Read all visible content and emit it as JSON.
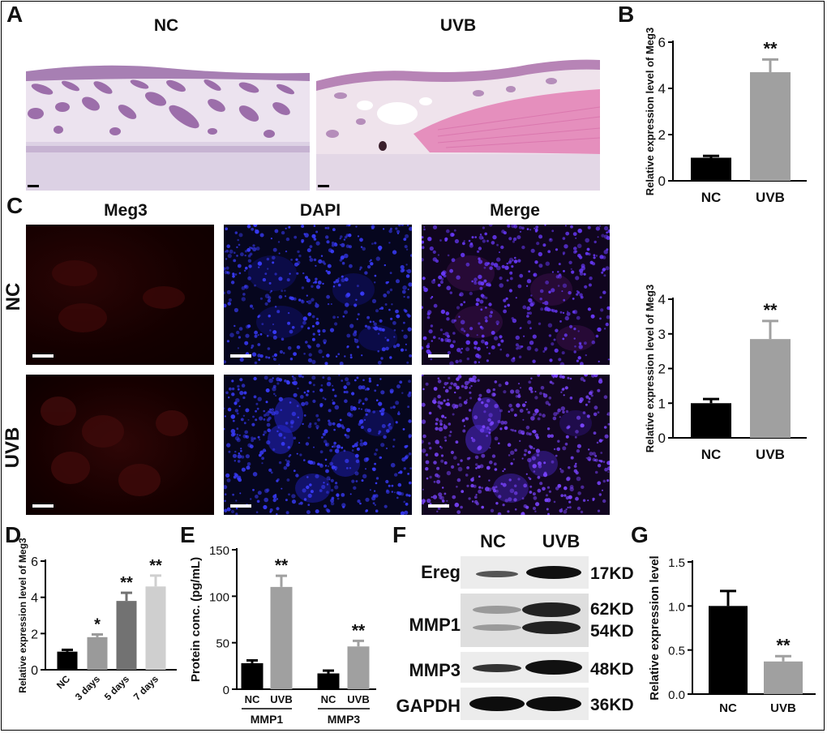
{
  "panels": {
    "A": {
      "label": "A",
      "titles": [
        "NC",
        "UVB"
      ]
    },
    "B": {
      "label": "B"
    },
    "C": {
      "label": "C",
      "columns": [
        "Meg3",
        "DAPI",
        "Merge"
      ],
      "rows": [
        "NC",
        "UVB"
      ]
    },
    "D": {
      "label": "D"
    },
    "E": {
      "label": "E"
    },
    "F": {
      "label": "F",
      "columns": [
        "NC",
        "UVB"
      ],
      "rows": [
        "Ereg",
        "MMP1",
        "MMP3",
        "GAPDH"
      ],
      "sizes": [
        "17KD",
        "62KD",
        "54KD",
        "48KD",
        "36KD"
      ]
    },
    "G": {
      "label": "G"
    }
  },
  "chart_data": [
    {
      "id": "B",
      "type": "bar",
      "categories": [
        "NC",
        "UVB"
      ],
      "values": [
        1.0,
        4.7
      ],
      "errors": [
        0.08,
        0.55
      ],
      "colors": [
        "#000000",
        "#a0a0a0"
      ],
      "ylabel": "Relative expression level of Meg3",
      "ylim": [
        0,
        6
      ],
      "yticks": [
        "0",
        "2",
        "4",
        "6"
      ],
      "annotations": [
        "",
        "**"
      ]
    },
    {
      "id": "C-right",
      "type": "bar",
      "categories": [
        "NC",
        "UVB"
      ],
      "values": [
        1.0,
        2.85
      ],
      "errors": [
        0.12,
        0.52
      ],
      "colors": [
        "#000000",
        "#a0a0a0"
      ],
      "ylabel": "Relative expression level of Meg3",
      "ylim": [
        0,
        4
      ],
      "yticks": [
        "0",
        "1",
        "2",
        "3",
        "4"
      ],
      "annotations": [
        "",
        "**"
      ]
    },
    {
      "id": "D",
      "type": "bar",
      "categories": [
        "NC",
        "3 days",
        "5 days",
        "7 days"
      ],
      "values": [
        1.0,
        1.8,
        3.8,
        4.6
      ],
      "errors": [
        0.1,
        0.15,
        0.45,
        0.6
      ],
      "colors": [
        "#000000",
        "#9a9a9a",
        "#727272",
        "#cfcfcf"
      ],
      "ylabel": "Relative expression level of Meg3",
      "ylim": [
        0,
        6
      ],
      "yticks": [
        "0",
        "2",
        "4",
        "6"
      ],
      "annotations": [
        "",
        "*",
        "**",
        "**"
      ]
    },
    {
      "id": "E",
      "type": "bar",
      "categories": [
        "NC",
        "UVB",
        "NC",
        "UVB"
      ],
      "groups": [
        "MMP1",
        "MMP3"
      ],
      "values": [
        28,
        110,
        17,
        46
      ],
      "errors": [
        3,
        12,
        3,
        6
      ],
      "colors": [
        "#000000",
        "#a0a0a0",
        "#000000",
        "#a0a0a0"
      ],
      "ylabel": "Protein conc. (pg/mL)",
      "ylim": [
        0,
        150
      ],
      "yticks": [
        "0",
        "50",
        "100",
        "150"
      ],
      "annotations": [
        "",
        "**",
        "",
        "**"
      ]
    },
    {
      "id": "G",
      "type": "bar",
      "categories": [
        "NC",
        "UVB"
      ],
      "values": [
        1.0,
        0.37
      ],
      "errors": [
        0.17,
        0.06
      ],
      "colors": [
        "#000000",
        "#a0a0a0"
      ],
      "ylabel": "Relative expression level",
      "ylim": [
        0,
        1.5
      ],
      "yticks": [
        "0.0",
        "0.5",
        "1.0",
        "1.5"
      ],
      "annotations": [
        "",
        "**"
      ]
    }
  ]
}
